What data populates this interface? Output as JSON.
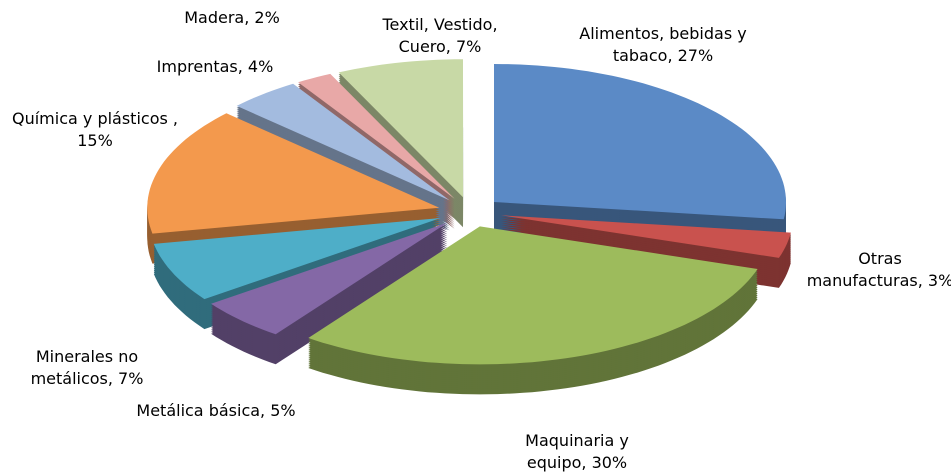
{
  "chart_data": {
    "type": "pie3d",
    "values": [
      27,
      3,
      30,
      5,
      7,
      15,
      4,
      2,
      7
    ],
    "value_labels": [
      "Alimentos, bebidas y tabaco, 27%",
      "Otras manufacturas, 3%",
      "Maquinaria y equipo, 30%",
      "Metálica básica, 5%",
      "Minerales no metálicos, 7%",
      "Química y plásticos , 15%",
      "Imprentas, 4%",
      "Madera, 2%",
      "Textil, Vestido, Cuero, 7%"
    ],
    "colors": [
      "#5b8ac6",
      "#c9524e",
      "#9dbb5c",
      "#8468a6",
      "#4eaec8",
      "#f3994d",
      "#a3bbdf",
      "#e8a8a7",
      "#c8d9a6"
    ]
  }
}
